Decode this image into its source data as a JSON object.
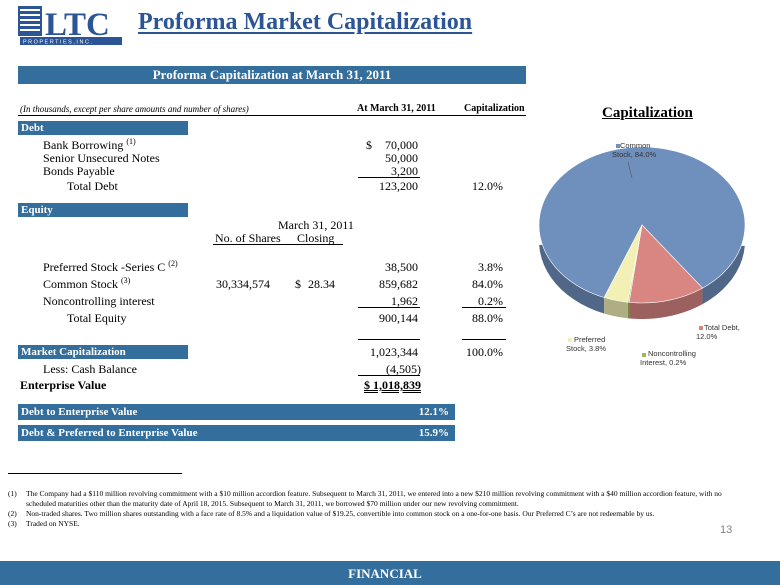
{
  "slide": {
    "title": "Proforma Market Capitalization",
    "page_number": "13",
    "footer_label": "FINANCIAL"
  },
  "logo": {
    "letters": "LTC",
    "tagline": "P R O P E R T I E S ,   I N C ."
  },
  "table": {
    "banner": "Proforma Capitalization at March 31, 2011",
    "header_note": "(In thousands, except per share amounts and number of shares)",
    "col_amount": "At March 31, 2011",
    "col_cap": "Capitalization",
    "debt": {
      "label": "Debt",
      "bank_borrowing": {
        "label": "Bank Borrowing",
        "sup": "(1)",
        "dollar": "$",
        "amount": "70,000"
      },
      "senior_notes": {
        "label": "Senior Unsecured Notes",
        "amount": "50,000"
      },
      "bonds": {
        "label": "Bonds Payable",
        "amount": "3,200"
      },
      "total": {
        "label": "Total Debt",
        "amount": "123,200",
        "pct": "12.0%"
      }
    },
    "equity": {
      "label": "Equity",
      "sub_header_date": "March 31, 2011",
      "sub_header_shares": "No. of Shares",
      "sub_header_closing": "Closing",
      "preferred": {
        "label": "Preferred Stock -Series C",
        "sup": "(2)",
        "amount": "38,500",
        "pct": "3.8%"
      },
      "common": {
        "label": "Common Stock",
        "sup": "(3)",
        "shares": "30,334,574",
        "dollar": "$",
        "price": "28.34",
        "amount": "859,682",
        "pct": "84.0%"
      },
      "noncontrolling": {
        "label": "Noncontrolling interest",
        "amount": "1,962",
        "pct": "0.2%"
      },
      "total": {
        "label": "Total Equity",
        "amount": "900,144",
        "pct": "88.0%"
      }
    },
    "market_cap": {
      "label": "Market Capitalization",
      "amount": "1,023,344",
      "pct": "100.0%"
    },
    "cash": {
      "label": "Less:  Cash Balance",
      "amount": "(4,505)"
    },
    "enterprise": {
      "label": "Enterprise Value",
      "amount": "$ 1,018,839"
    },
    "debt_to_ev": {
      "label": "Debt to Enterprise Value",
      "value": "12.1%"
    },
    "debt_pref_to_ev": {
      "label": "Debt & Preferred to Enterprise Value",
      "value": "15.9%"
    }
  },
  "footnotes": [
    {
      "num": "(1)",
      "text": "The Company had a $110 million revolving commitment with a $10 million accordion feature.  Subsequent to March 31, 2011, we entered into a new $210 million revolving commitment with a $40 million accordion feature, with no scheduled maturities other than the maturity date of April 18, 2015.  Subsequent to March 31, 2011, we borrowed $70 million under our new revolving commitment."
    },
    {
      "num": "(2)",
      "text": "Non-traded shares.  Two million shares outstanding with a face rate of 8.5% and a liquidation value of $19.25, convertible into common stock on a one-for-one basis.  Our Preferred C’s are not redeemable by us."
    },
    {
      "num": "(3)",
      "text": "Traded on NYSE."
    }
  ],
  "chart_data": {
    "type": "pie",
    "title": "Capitalization",
    "slices": [
      {
        "name": "Common Stock",
        "value": 84.0,
        "label_line1": "Common",
        "label_line2": "Stock, 84.0%",
        "color": "#6f8fbd"
      },
      {
        "name": "Total Debt",
        "value": 12.0,
        "label_line1": "Total Debt,",
        "label_line2": "12.0%",
        "color": "#d98683"
      },
      {
        "name": "Noncontrolling Interest",
        "value": 0.2,
        "label_line1": "Noncontrolling",
        "label_line2": "Interest, 0.2%",
        "color": "#9bba59"
      },
      {
        "name": "Preferred Stock",
        "value": 3.8,
        "label_line1": "Preferred",
        "label_line2": "Stock, 3.8%",
        "color": "#f3f0b6"
      }
    ],
    "style": "3d"
  },
  "colors": {
    "title_blue": "#2b5596",
    "banner_blue": "#336e9c"
  }
}
